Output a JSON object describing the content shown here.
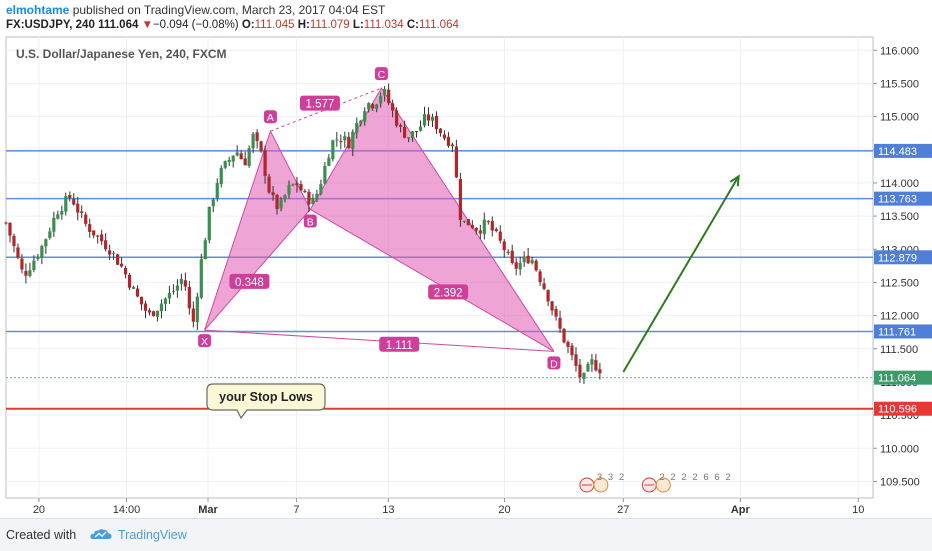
{
  "header": {
    "author": "elmohtame",
    "published_text": "published on TradingView.com, March 23, 2017 04:04 EST",
    "symbol": "FX:USDJPY, 240",
    "last": "111.064",
    "change_arrow": "▼",
    "change": "−0.094 (−0.08%)",
    "o_label": "O:",
    "o": "111.045",
    "h_label": "H:",
    "h": "111.079",
    "l_label": "L:",
    "l": "111.034",
    "c_label": "C:",
    "c": "111.064"
  },
  "footer": {
    "created_with": "Created with",
    "brand": "TradingView"
  },
  "chart_data": {
    "type": "candlestick",
    "title": "U.S. Dollar/Japanese Yen, 240, FXCM",
    "ylim": [
      109.25,
      116.2
    ],
    "y_ticks": [
      "109.500",
      "110.000",
      "110.500",
      "111.000",
      "111.500",
      "112.000",
      "112.500",
      "113.000",
      "113.500",
      "114.000",
      "114.500",
      "115.000",
      "115.500",
      "116.000"
    ],
    "x_ticks": [
      {
        "label": "20",
        "pos": 0.038
      },
      {
        "label": "14:00",
        "pos": 0.139
      },
      {
        "label": "Mar",
        "pos": 0.233
      },
      {
        "label": "7",
        "pos": 0.335
      },
      {
        "label": "13",
        "pos": 0.441
      },
      {
        "label": "20",
        "pos": 0.575
      },
      {
        "label": "27",
        "pos": 0.712
      },
      {
        "label": "Apr",
        "pos": 0.847
      },
      {
        "label": "10",
        "pos": 0.983
      }
    ],
    "horizontal_lines": [
      {
        "value": 114.483,
        "label": "114.483",
        "color": "#5b8fe0"
      },
      {
        "value": 113.763,
        "label": "113.763",
        "color": "#5b8fe0"
      },
      {
        "value": 112.879,
        "label": "112.879",
        "color": "#5b8fe0"
      },
      {
        "value": 111.761,
        "label": "111.761",
        "color": "#5b8fe0"
      },
      {
        "value": 110.596,
        "label": "110.596",
        "color": "#e53935"
      }
    ],
    "last_price": {
      "value": 111.064,
      "label": "111.064",
      "color": "#2e8b57"
    },
    "close_path": [
      [
        0.0,
        113.4
      ],
      [
        0.02,
        112.6
      ],
      [
        0.04,
        113.0
      ],
      [
        0.06,
        113.6
      ],
      [
        0.075,
        113.8
      ],
      [
        0.09,
        113.4
      ],
      [
        0.105,
        113.2
      ],
      [
        0.12,
        113.0
      ],
      [
        0.135,
        112.7
      ],
      [
        0.15,
        112.3
      ],
      [
        0.165,
        112.0
      ],
      [
        0.18,
        112.2
      ],
      [
        0.195,
        112.4
      ],
      [
        0.205,
        112.6
      ],
      [
        0.215,
        111.8
      ],
      [
        0.225,
        112.8
      ],
      [
        0.235,
        113.6
      ],
      [
        0.245,
        114.1
      ],
      [
        0.255,
        114.3
      ],
      [
        0.265,
        114.5
      ],
      [
        0.275,
        114.3
      ],
      [
        0.285,
        114.7
      ],
      [
        0.295,
        114.4
      ],
      [
        0.305,
        113.8
      ],
      [
        0.315,
        113.6
      ],
      [
        0.325,
        113.9
      ],
      [
        0.335,
        114.0
      ],
      [
        0.345,
        113.8
      ],
      [
        0.355,
        113.7
      ],
      [
        0.365,
        114.1
      ],
      [
        0.375,
        114.6
      ],
      [
        0.385,
        114.7
      ],
      [
        0.395,
        114.6
      ],
      [
        0.405,
        114.9
      ],
      [
        0.415,
        115.2
      ],
      [
        0.425,
        115.2
      ],
      [
        0.435,
        115.4
      ],
      [
        0.445,
        115.1
      ],
      [
        0.455,
        114.8
      ],
      [
        0.465,
        114.7
      ],
      [
        0.475,
        114.8
      ],
      [
        0.485,
        115.0
      ],
      [
        0.495,
        114.9
      ],
      [
        0.505,
        114.7
      ],
      [
        0.515,
        114.6
      ],
      [
        0.525,
        113.4
      ],
      [
        0.535,
        113.4
      ],
      [
        0.545,
        113.3
      ],
      [
        0.555,
        113.4
      ],
      [
        0.565,
        113.2
      ],
      [
        0.575,
        113.0
      ],
      [
        0.585,
        112.7
      ],
      [
        0.595,
        112.8
      ],
      [
        0.605,
        112.9
      ],
      [
        0.615,
        112.6
      ],
      [
        0.625,
        112.3
      ],
      [
        0.635,
        111.9
      ],
      [
        0.645,
        111.6
      ],
      [
        0.655,
        111.3
      ],
      [
        0.665,
        111.0
      ],
      [
        0.675,
        111.3
      ],
      [
        0.685,
        111.2
      ]
    ],
    "harmonic_pattern": {
      "points": [
        {
          "name": "X",
          "pos": 0.229,
          "value": 111.78
        },
        {
          "name": "A",
          "pos": 0.305,
          "value": 114.78
        },
        {
          "name": "B",
          "pos": 0.351,
          "value": 113.6
        },
        {
          "name": "C",
          "pos": 0.433,
          "value": 115.43
        },
        {
          "name": "D",
          "pos": 0.632,
          "value": 111.46
        }
      ],
      "ratios": [
        "1.577",
        "0.348",
        "2.392",
        "1.111"
      ]
    },
    "annotation": "your Stop Lows",
    "arrow": {
      "from": [
        0.712,
        111.15
      ],
      "to": [
        0.845,
        114.1
      ],
      "color": "#2f7d1f"
    },
    "event_marks": [
      "3",
      "3",
      "2",
      "2",
      "2",
      "2",
      "2",
      "6",
      "6",
      "2"
    ]
  }
}
